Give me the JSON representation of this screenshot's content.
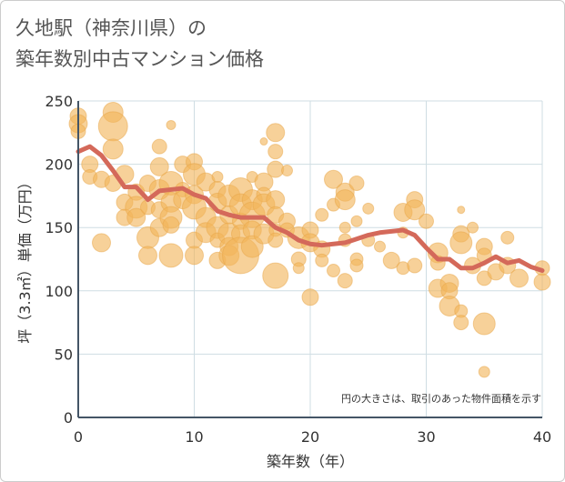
{
  "page": {
    "title_line1": "久地駅（神奈川県）の",
    "title_line2": "築年数別中古マンション価格"
  },
  "chart_data": {
    "type": "scatter",
    "title": "久地駅（神奈川県）の築年数別中古マンション価格",
    "xlabel": "築年数（年）",
    "ylabel": "坪（3.3㎡）単価（万円）",
    "xlim": [
      0,
      40
    ],
    "ylim": [
      0,
      250
    ],
    "xticks": [
      0,
      10,
      20,
      30,
      40
    ],
    "yticks": [
      0,
      50,
      100,
      150,
      200,
      250
    ],
    "grid": true,
    "note": "円の大きさは、取引のあった物件面積を示す",
    "colors": {
      "bubble": "#f2b45a",
      "bubble_stroke": "#e8a548",
      "line": "#d4695a",
      "grid": "#cfdde3",
      "axis": "#445566"
    },
    "series": [
      {
        "kind": "bubbles",
        "points": [
          {
            "x": 0,
            "y": 238,
            "s": 9
          },
          {
            "x": 0,
            "y": 232,
            "s": 10
          },
          {
            "x": 0,
            "y": 226,
            "s": 8
          },
          {
            "x": 1,
            "y": 200,
            "s": 9
          },
          {
            "x": 1,
            "y": 190,
            "s": 8
          },
          {
            "x": 2,
            "y": 188,
            "s": 9
          },
          {
            "x": 2,
            "y": 138,
            "s": 10
          },
          {
            "x": 3,
            "y": 241,
            "s": 11
          },
          {
            "x": 3,
            "y": 230,
            "s": 16
          },
          {
            "x": 3,
            "y": 212,
            "s": 11
          },
          {
            "x": 3,
            "y": 185,
            "s": 9
          },
          {
            "x": 4,
            "y": 192,
            "s": 10
          },
          {
            "x": 4,
            "y": 170,
            "s": 9
          },
          {
            "x": 4,
            "y": 158,
            "s": 9
          },
          {
            "x": 5,
            "y": 178,
            "s": 9
          },
          {
            "x": 5,
            "y": 166,
            "s": 12
          },
          {
            "x": 5,
            "y": 158,
            "s": 10
          },
          {
            "x": 6,
            "y": 185,
            "s": 9
          },
          {
            "x": 6,
            "y": 166,
            "s": 8
          },
          {
            "x": 6,
            "y": 142,
            "s": 12
          },
          {
            "x": 6,
            "y": 128,
            "s": 10
          },
          {
            "x": 7,
            "y": 214,
            "s": 8
          },
          {
            "x": 7,
            "y": 198,
            "s": 10
          },
          {
            "x": 7,
            "y": 180,
            "s": 11
          },
          {
            "x": 7,
            "y": 164,
            "s": 9
          },
          {
            "x": 7,
            "y": 150,
            "s": 10
          },
          {
            "x": 8,
            "y": 231,
            "s": 5
          },
          {
            "x": 8,
            "y": 185,
            "s": 13
          },
          {
            "x": 8,
            "y": 170,
            "s": 11
          },
          {
            "x": 8,
            "y": 158,
            "s": 12
          },
          {
            "x": 8,
            "y": 152,
            "s": 9
          },
          {
            "x": 8,
            "y": 128,
            "s": 13
          },
          {
            "x": 9,
            "y": 200,
            "s": 9
          },
          {
            "x": 9,
            "y": 180,
            "s": 8
          },
          {
            "x": 9,
            "y": 172,
            "s": 10
          },
          {
            "x": 10,
            "y": 202,
            "s": 9
          },
          {
            "x": 10,
            "y": 192,
            "s": 12
          },
          {
            "x": 10,
            "y": 176,
            "s": 10
          },
          {
            "x": 10,
            "y": 166,
            "s": 13
          },
          {
            "x": 10,
            "y": 140,
            "s": 9
          },
          {
            "x": 10,
            "y": 128,
            "s": 10
          },
          {
            "x": 11,
            "y": 186,
            "s": 10
          },
          {
            "x": 11,
            "y": 158,
            "s": 11
          },
          {
            "x": 11,
            "y": 146,
            "s": 11
          },
          {
            "x": 12,
            "y": 190,
            "s": 6
          },
          {
            "x": 12,
            "y": 180,
            "s": 9
          },
          {
            "x": 12,
            "y": 170,
            "s": 10
          },
          {
            "x": 12,
            "y": 150,
            "s": 12
          },
          {
            "x": 12,
            "y": 140,
            "s": 8
          },
          {
            "x": 12,
            "y": 124,
            "s": 9
          },
          {
            "x": 13,
            "y": 175,
            "s": 12
          },
          {
            "x": 13,
            "y": 160,
            "s": 10
          },
          {
            "x": 13,
            "y": 145,
            "s": 12
          },
          {
            "x": 13,
            "y": 135,
            "s": 10
          },
          {
            "x": 13,
            "y": 128,
            "s": 11
          },
          {
            "x": 14,
            "y": 180,
            "s": 13
          },
          {
            "x": 14,
            "y": 168,
            "s": 12
          },
          {
            "x": 14,
            "y": 155,
            "s": 9
          },
          {
            "x": 14,
            "y": 145,
            "s": 10
          },
          {
            "x": 14,
            "y": 128,
            "s": 20
          },
          {
            "x": 15,
            "y": 190,
            "s": 6
          },
          {
            "x": 15,
            "y": 172,
            "s": 11
          },
          {
            "x": 15,
            "y": 160,
            "s": 14
          },
          {
            "x": 15,
            "y": 148,
            "s": 10
          },
          {
            "x": 15,
            "y": 135,
            "s": 12
          },
          {
            "x": 16,
            "y": 218,
            "s": 4
          },
          {
            "x": 16,
            "y": 186,
            "s": 10
          },
          {
            "x": 16,
            "y": 176,
            "s": 8
          },
          {
            "x": 16,
            "y": 168,
            "s": 12
          },
          {
            "x": 16,
            "y": 145,
            "s": 11
          },
          {
            "x": 17,
            "y": 225,
            "s": 10
          },
          {
            "x": 17,
            "y": 210,
            "s": 8
          },
          {
            "x": 17,
            "y": 196,
            "s": 9
          },
          {
            "x": 17,
            "y": 172,
            "s": 10
          },
          {
            "x": 17,
            "y": 160,
            "s": 9
          },
          {
            "x": 17,
            "y": 148,
            "s": 7
          },
          {
            "x": 17,
            "y": 140,
            "s": 8
          },
          {
            "x": 17,
            "y": 112,
            "s": 14
          },
          {
            "x": 18,
            "y": 195,
            "s": 6
          },
          {
            "x": 18,
            "y": 155,
            "s": 9
          },
          {
            "x": 18,
            "y": 148,
            "s": 8
          },
          {
            "x": 19,
            "y": 142,
            "s": 12
          },
          {
            "x": 19,
            "y": 125,
            "s": 8
          },
          {
            "x": 19,
            "y": 118,
            "s": 6
          },
          {
            "x": 20,
            "y": 148,
            "s": 9
          },
          {
            "x": 20,
            "y": 138,
            "s": 10
          },
          {
            "x": 20,
            "y": 95,
            "s": 9
          },
          {
            "x": 21,
            "y": 160,
            "s": 7
          },
          {
            "x": 21,
            "y": 133,
            "s": 9
          },
          {
            "x": 21,
            "y": 124,
            "s": 7
          },
          {
            "x": 22,
            "y": 188,
            "s": 10
          },
          {
            "x": 22,
            "y": 168,
            "s": 7
          },
          {
            "x": 22,
            "y": 116,
            "s": 7
          },
          {
            "x": 23,
            "y": 178,
            "s": 10
          },
          {
            "x": 23,
            "y": 172,
            "s": 11
          },
          {
            "x": 23,
            "y": 150,
            "s": 6
          },
          {
            "x": 23,
            "y": 140,
            "s": 7
          },
          {
            "x": 23,
            "y": 108,
            "s": 8
          },
          {
            "x": 24,
            "y": 185,
            "s": 8
          },
          {
            "x": 24,
            "y": 155,
            "s": 6
          },
          {
            "x": 24,
            "y": 125,
            "s": 7
          },
          {
            "x": 24,
            "y": 120,
            "s": 7
          },
          {
            "x": 25,
            "y": 165,
            "s": 6
          },
          {
            "x": 25,
            "y": 140,
            "s": 7
          },
          {
            "x": 26,
            "y": 135,
            "s": 6
          },
          {
            "x": 27,
            "y": 124,
            "s": 9
          },
          {
            "x": 28,
            "y": 162,
            "s": 10
          },
          {
            "x": 28,
            "y": 146,
            "s": 6
          },
          {
            "x": 28,
            "y": 118,
            "s": 7
          },
          {
            "x": 29,
            "y": 172,
            "s": 9
          },
          {
            "x": 29,
            "y": 164,
            "s": 11
          },
          {
            "x": 29,
            "y": 120,
            "s": 8
          },
          {
            "x": 30,
            "y": 155,
            "s": 8
          },
          {
            "x": 31,
            "y": 130,
            "s": 11
          },
          {
            "x": 31,
            "y": 122,
            "s": 8
          },
          {
            "x": 31,
            "y": 102,
            "s": 10
          },
          {
            "x": 32,
            "y": 106,
            "s": 10
          },
          {
            "x": 32,
            "y": 100,
            "s": 9
          },
          {
            "x": 32,
            "y": 88,
            "s": 11
          },
          {
            "x": 33,
            "y": 164,
            "s": 4
          },
          {
            "x": 33,
            "y": 145,
            "s": 9
          },
          {
            "x": 33,
            "y": 138,
            "s": 12
          },
          {
            "x": 33,
            "y": 84,
            "s": 7
          },
          {
            "x": 33,
            "y": 75,
            "s": 8
          },
          {
            "x": 34,
            "y": 150,
            "s": 6
          },
          {
            "x": 34,
            "y": 120,
            "s": 9
          },
          {
            "x": 35,
            "y": 135,
            "s": 9
          },
          {
            "x": 35,
            "y": 128,
            "s": 8
          },
          {
            "x": 35,
            "y": 110,
            "s": 8
          },
          {
            "x": 35,
            "y": 74,
            "s": 12
          },
          {
            "x": 35,
            "y": 36,
            "s": 6
          },
          {
            "x": 36,
            "y": 115,
            "s": 9
          },
          {
            "x": 37,
            "y": 142,
            "s": 7
          },
          {
            "x": 37,
            "y": 120,
            "s": 9
          },
          {
            "x": 38,
            "y": 110,
            "s": 10
          },
          {
            "x": 40,
            "y": 118,
            "s": 8
          },
          {
            "x": 40,
            "y": 107,
            "s": 9
          }
        ]
      },
      {
        "kind": "line",
        "x": [
          0,
          1,
          2,
          3,
          4,
          5,
          6,
          7,
          8,
          9,
          10,
          11,
          12,
          13,
          14,
          15,
          16,
          17,
          18,
          19,
          20,
          21,
          22,
          23,
          24,
          25,
          26,
          27,
          28,
          29,
          30,
          31,
          32,
          33,
          34,
          35,
          36,
          37,
          38,
          39,
          40
        ],
        "y": [
          210,
          214,
          207,
          195,
          182,
          182,
          172,
          179,
          180,
          181,
          176,
          173,
          163,
          160,
          158,
          158,
          158,
          150,
          146,
          140,
          137,
          136,
          137,
          138,
          141,
          144,
          146,
          147,
          148,
          144,
          134,
          125,
          125,
          118,
          118,
          122,
          127,
          122,
          124,
          119,
          116
        ]
      }
    ]
  }
}
